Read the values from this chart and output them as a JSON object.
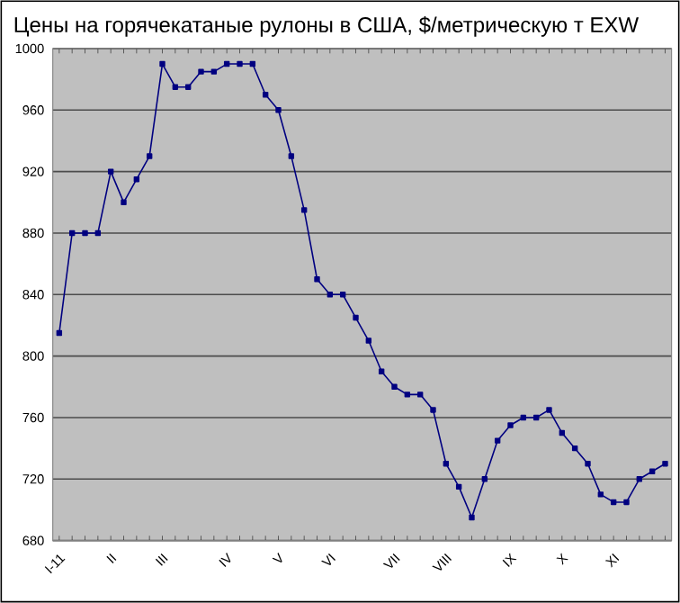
{
  "chart_data": {
    "type": "line",
    "title": "Цены на горячекатаные рулоны в США, $/метрическую т EXW",
    "categories": [
      "I-11",
      null,
      null,
      null,
      "II",
      null,
      null,
      null,
      "III",
      null,
      null,
      null,
      null,
      "IV",
      null,
      null,
      null,
      "V",
      null,
      null,
      null,
      "VI",
      null,
      null,
      null,
      null,
      "VII",
      null,
      null,
      null,
      "VIII",
      null,
      null,
      null,
      null,
      "IX",
      null,
      null,
      null,
      "X",
      null,
      null,
      null,
      "XI",
      null,
      null,
      null,
      null
    ],
    "series": [
      {
        "color": "#000080",
        "values": [
          815,
          880,
          880,
          880,
          920,
          900,
          915,
          930,
          990,
          975,
          975,
          985,
          985,
          990,
          990,
          990,
          970,
          960,
          930,
          895,
          850,
          840,
          840,
          825,
          810,
          790,
          780,
          775,
          775,
          765,
          730,
          715,
          695,
          720,
          745,
          755,
          760,
          760,
          765,
          750,
          740,
          730,
          710,
          705,
          705,
          720,
          725,
          730
        ]
      }
    ],
    "ylim": [
      680,
      1000
    ],
    "yticks": [
      680,
      720,
      760,
      800,
      840,
      880,
      920,
      960,
      1000
    ],
    "grid": "y",
    "marker": "square",
    "line_style": "solid"
  }
}
